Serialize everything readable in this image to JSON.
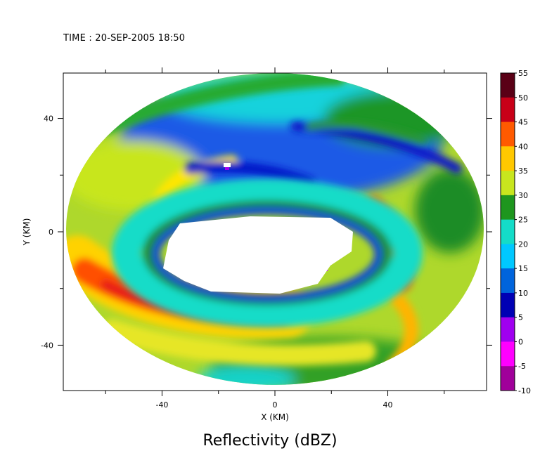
{
  "header": {
    "time_label": "TIME : 20-SEP-2005 18:50"
  },
  "footer": {
    "title": "Reflectivity (dBZ)"
  },
  "chart_data": {
    "type": "heatmap",
    "title": "Reflectivity (dBZ)",
    "subtitle": "TIME : 20-SEP-2005 18:50",
    "xlabel": "X (KM)",
    "ylabel": "Y (KM)",
    "xlim": [
      -75,
      75
    ],
    "ylim": [
      -56,
      56
    ],
    "xticks": [
      -40,
      0,
      40
    ],
    "yticks": [
      -40,
      0,
      40
    ],
    "xtick_labels": [
      "-40",
      "0",
      "40"
    ],
    "ytick_labels": [
      "-40",
      "0",
      "40"
    ],
    "grid": false,
    "colorbar": {
      "min": -10,
      "max": 55,
      "step": 5,
      "labels": [
        "55",
        "50",
        "45",
        "40",
        "35",
        "30",
        "25",
        "20",
        "15",
        "10",
        "5",
        "0",
        "-5",
        "-10"
      ],
      "colors": [
        "#5a0016",
        "#c80018",
        "#ff5a00",
        "#ffc800",
        "#c8e61e",
        "#1e961e",
        "#14dcc8",
        "#00c8ff",
        "#0064dc",
        "#0000b4",
        "#a000f0",
        "#ff00ff",
        "#a0009a",
        "#5a0050"
      ]
    },
    "domain": {
      "outer_radius_x_km": 74,
      "outer_radius_y_km": 55,
      "center_x_km": 0,
      "center_y_km": 1
    },
    "inner_gap": {
      "center_x_km": 3,
      "center_y_km": -6,
      "radius_x_km": 37,
      "radius_y_km": 15
    },
    "features": [
      {
        "name": "inner-eyewall-band",
        "value_dbz": 22
      },
      {
        "name": "southwest-rainband",
        "value_dbz": 45
      },
      {
        "name": "northern-weak-echo",
        "value_dbz": 12
      },
      {
        "name": "east-rainband",
        "value_dbz": 43
      },
      {
        "name": "southeast-outer-band",
        "value_dbz": 35
      }
    ]
  }
}
